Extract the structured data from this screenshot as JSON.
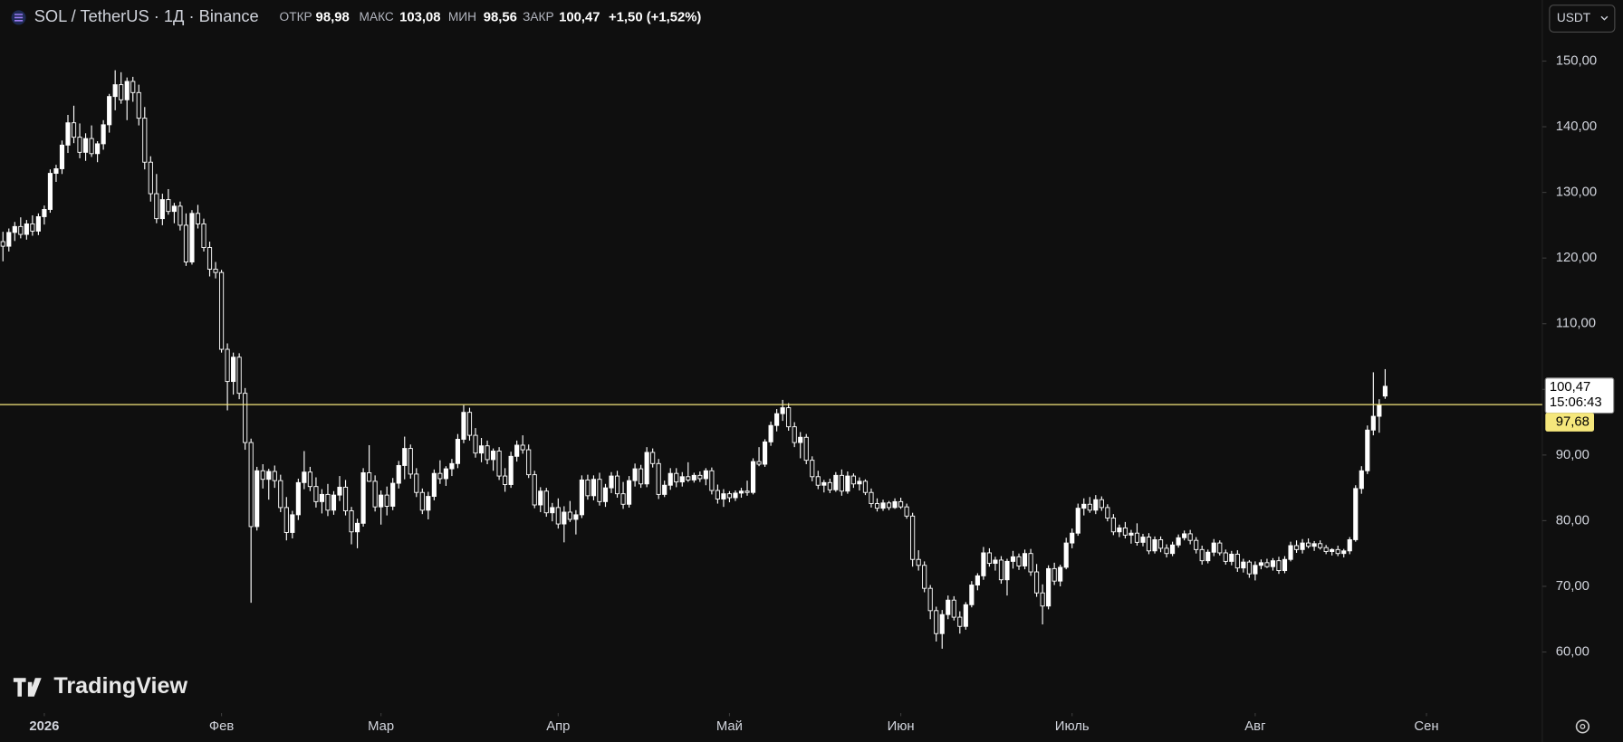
{
  "chart_data": {
    "type": "candlestick",
    "title": "SOL / TetherUS · 1Д · Binance",
    "ohlc_header": [
      {
        "label": "ОТКР",
        "value": "98,98"
      },
      {
        "label": "МАКС",
        "value": "103,08"
      },
      {
        "label": "МИН",
        "value": "98,56"
      },
      {
        "label": "ЗАКР",
        "value": "100,47"
      }
    ],
    "change": "+1,50 (+1,52%)",
    "currency": "USDT",
    "watermark": "TradingView",
    "up_color": "#ffffff",
    "down_color": "#0f0f0f",
    "wick_color": "#ffffff",
    "grid": false,
    "ylim": [
      50.7,
      159.3
    ],
    "yticks": [
      {
        "value": 60,
        "label": "60,00"
      },
      {
        "value": 70,
        "label": "70,00"
      },
      {
        "value": 80,
        "label": "80,00"
      },
      {
        "value": 90,
        "label": "90,00"
      },
      {
        "value": 100,
        "label": "100,00"
      },
      {
        "value": 110,
        "label": "110,00"
      },
      {
        "value": 120,
        "label": "120,00"
      },
      {
        "value": 130,
        "label": "130,00"
      },
      {
        "value": 140,
        "label": "140,00"
      },
      {
        "value": 150,
        "label": "150,00"
      }
    ],
    "xlim": [
      -0.5,
      260.6
    ],
    "xticks": [
      {
        "value": 7,
        "label": "2026"
      },
      {
        "value": 37,
        "label": "Фев"
      },
      {
        "value": 64,
        "label": "Мар"
      },
      {
        "value": 94,
        "label": "Апр"
      },
      {
        "value": 123,
        "label": "Май"
      },
      {
        "value": 152,
        "label": "Июн"
      },
      {
        "value": 181,
        "label": "Июль"
      },
      {
        "value": 212,
        "label": "Авг"
      },
      {
        "value": 241,
        "label": "Сен"
      }
    ],
    "price_line": {
      "value": 97.68,
      "label": "97,68",
      "color": "#f5e77c"
    },
    "last_price": {
      "value": 100.47,
      "label": "100,47"
    },
    "countdown": "15:06:43",
    "candles": [
      [
        122.5,
        124.0,
        119.5,
        121.8
      ],
      [
        121.8,
        124.5,
        121.0,
        123.9
      ],
      [
        123.9,
        125.5,
        122.6,
        124.8
      ],
      [
        124.8,
        126.2,
        123.0,
        123.6
      ],
      [
        123.6,
        125.8,
        122.8,
        125.2
      ],
      [
        125.2,
        126.5,
        123.4,
        124.1
      ],
      [
        124.1,
        126.8,
        123.5,
        126.3
      ],
      [
        126.3,
        128.0,
        125.1,
        127.4
      ],
      [
        127.4,
        133.5,
        126.9,
        132.9
      ],
      [
        132.9,
        134.2,
        131.6,
        133.6
      ],
      [
        133.6,
        137.9,
        132.8,
        137.2
      ],
      [
        137.2,
        141.8,
        136.0,
        140.6
      ],
      [
        140.6,
        143.2,
        137.5,
        138.4
      ],
      [
        138.4,
        140.5,
        135.2,
        136.1
      ],
      [
        136.1,
        139.0,
        134.8,
        138.2
      ],
      [
        138.2,
        140.2,
        135.4,
        135.9
      ],
      [
        135.9,
        137.8,
        134.6,
        137.4
      ],
      [
        137.4,
        141.0,
        136.5,
        140.3
      ],
      [
        140.3,
        145.0,
        139.1,
        144.6
      ],
      [
        144.6,
        148.6,
        142.5,
        146.4
      ],
      [
        146.4,
        148.3,
        143.5,
        144.1
      ],
      [
        144.1,
        147.5,
        141.0,
        146.9
      ],
      [
        146.9,
        147.6,
        143.8,
        145.2
      ],
      [
        145.2,
        146.4,
        140.2,
        141.3
      ],
      [
        141.3,
        143.0,
        133.5,
        134.6
      ],
      [
        134.6,
        135.5,
        128.6,
        129.8
      ],
      [
        129.8,
        132.8,
        125.3,
        126.0
      ],
      [
        126.0,
        129.8,
        125.0,
        128.9
      ],
      [
        128.9,
        130.5,
        126.6,
        127.1
      ],
      [
        127.1,
        128.4,
        125.3,
        127.9
      ],
      [
        127.9,
        128.6,
        124.2,
        125.0
      ],
      [
        125.0,
        126.8,
        118.8,
        119.4
      ],
      [
        119.4,
        127.3,
        119.0,
        126.8
      ],
      [
        126.8,
        128.1,
        124.5,
        125.2
      ],
      [
        125.2,
        126.0,
        121.0,
        121.6
      ],
      [
        121.6,
        122.5,
        117.2,
        118.3
      ],
      [
        118.3,
        119.4,
        116.9,
        117.8
      ],
      [
        117.8,
        118.2,
        105.6,
        106.1
      ],
      [
        106.1,
        107.0,
        96.8,
        101.2
      ],
      [
        101.2,
        105.6,
        99.2,
        104.9
      ],
      [
        104.9,
        105.5,
        98.5,
        99.4
      ],
      [
        99.4,
        100.2,
        90.8,
        91.9
      ],
      [
        91.9,
        92.5,
        67.5,
        79.1
      ],
      [
        79.1,
        88.2,
        78.5,
        87.6
      ],
      [
        87.6,
        88.6,
        84.9,
        86.3
      ],
      [
        86.3,
        87.9,
        83.2,
        87.5
      ],
      [
        87.5,
        88.4,
        85.0,
        86.1
      ],
      [
        86.1,
        87.0,
        81.3,
        82.0
      ],
      [
        82.0,
        83.6,
        77.0,
        78.2
      ],
      [
        78.2,
        81.5,
        77.3,
        80.9
      ],
      [
        80.9,
        86.4,
        80.1,
        85.8
      ],
      [
        85.8,
        90.6,
        84.8,
        87.4
      ],
      [
        87.4,
        88.2,
        84.5,
        85.2
      ],
      [
        85.2,
        86.6,
        82.0,
        82.9
      ],
      [
        82.9,
        84.8,
        81.1,
        84.0
      ],
      [
        84.0,
        85.6,
        80.7,
        81.6
      ],
      [
        81.6,
        84.5,
        80.9,
        83.9
      ],
      [
        83.9,
        86.8,
        83.0,
        85.1
      ],
      [
        85.1,
        86.2,
        80.8,
        81.5
      ],
      [
        81.5,
        82.1,
        76.4,
        78.3
      ],
      [
        78.3,
        80.3,
        75.8,
        79.6
      ],
      [
        79.6,
        88.0,
        79.1,
        87.3
      ],
      [
        87.3,
        91.5,
        85.9,
        86.0
      ],
      [
        86.0,
        86.9,
        81.4,
        82.1
      ],
      [
        82.1,
        84.6,
        79.4,
        83.9
      ],
      [
        83.9,
        85.2,
        80.8,
        82.2
      ],
      [
        82.2,
        86.5,
        81.6,
        85.7
      ],
      [
        85.7,
        89.1,
        84.9,
        88.4
      ],
      [
        88.4,
        92.8,
        86.3,
        91.0
      ],
      [
        91.0,
        91.6,
        86.4,
        87.1
      ],
      [
        87.1,
        88.0,
        83.6,
        84.3
      ],
      [
        84.3,
        84.9,
        81.0,
        81.6
      ],
      [
        81.6,
        84.4,
        80.2,
        83.7
      ],
      [
        83.7,
        87.8,
        83.1,
        87.2
      ],
      [
        87.2,
        89.2,
        85.6,
        86.4
      ],
      [
        86.4,
        88.3,
        85.3,
        87.9
      ],
      [
        87.9,
        89.4,
        86.8,
        88.7
      ],
      [
        88.7,
        93.2,
        88.0,
        92.4
      ],
      [
        92.4,
        97.6,
        91.8,
        96.5
      ],
      [
        96.5,
        97.2,
        92.2,
        93.0
      ],
      [
        93.0,
        94.1,
        89.6,
        90.3
      ],
      [
        90.3,
        92.6,
        88.9,
        91.4
      ],
      [
        91.4,
        92.2,
        88.6,
        89.3
      ],
      [
        89.3,
        91.0,
        87.6,
        90.6
      ],
      [
        90.6,
        91.2,
        86.2,
        86.8
      ],
      [
        86.8,
        88.0,
        84.4,
        85.5
      ],
      [
        85.5,
        90.5,
        85.0,
        89.8
      ],
      [
        89.8,
        92.2,
        89.0,
        91.5
      ],
      [
        91.5,
        93.0,
        90.2,
        90.8
      ],
      [
        90.8,
        91.6,
        86.5,
        87.0
      ],
      [
        87.0,
        87.6,
        81.9,
        82.4
      ],
      [
        82.4,
        85.1,
        81.3,
        84.5
      ],
      [
        84.5,
        85.0,
        80.6,
        81.2
      ],
      [
        81.2,
        82.7,
        79.9,
        82.0
      ],
      [
        82.0,
        83.4,
        78.8,
        79.5
      ],
      [
        79.5,
        82.2,
        76.7,
        81.3
      ],
      [
        81.3,
        83.0,
        79.8,
        80.2
      ],
      [
        80.2,
        81.6,
        77.9,
        80.9
      ],
      [
        80.9,
        86.9,
        80.4,
        86.2
      ],
      [
        86.2,
        87.0,
        83.2,
        83.8
      ],
      [
        83.8,
        86.9,
        83.1,
        86.3
      ],
      [
        86.3,
        87.3,
        82.3,
        82.9
      ],
      [
        82.9,
        85.6,
        82.1,
        85.0
      ],
      [
        85.0,
        87.4,
        84.2,
        86.8
      ],
      [
        86.8,
        87.6,
        83.5,
        84.1
      ],
      [
        84.1,
        85.9,
        81.8,
        82.5
      ],
      [
        82.5,
        86.8,
        82.0,
        86.1
      ],
      [
        86.1,
        88.7,
        85.2,
        87.9
      ],
      [
        87.9,
        88.5,
        85.0,
        85.6
      ],
      [
        85.6,
        91.2,
        85.1,
        90.4
      ],
      [
        90.4,
        91.0,
        88.1,
        88.7
      ],
      [
        88.7,
        89.4,
        83.3,
        84.0
      ],
      [
        84.0,
        86.1,
        83.6,
        85.4
      ],
      [
        85.4,
        88.0,
        84.7,
        87.2
      ],
      [
        87.2,
        88.0,
        85.1,
        85.9
      ],
      [
        85.9,
        87.4,
        85.2,
        86.7
      ],
      [
        86.7,
        88.9,
        85.9,
        86.2
      ],
      [
        86.2,
        87.3,
        85.8,
        86.9
      ],
      [
        86.9,
        87.5,
        85.9,
        86.4
      ],
      [
        86.4,
        88.0,
        85.4,
        87.6
      ],
      [
        87.6,
        88.1,
        84.0,
        84.6
      ],
      [
        84.6,
        85.5,
        82.6,
        83.3
      ],
      [
        83.3,
        84.8,
        82.1,
        84.1
      ],
      [
        84.1,
        84.5,
        82.8,
        83.5
      ],
      [
        83.5,
        84.6,
        83.0,
        84.2
      ],
      [
        84.2,
        85.0,
        83.5,
        84.5
      ],
      [
        84.5,
        86.1,
        83.8,
        84.3
      ],
      [
        84.3,
        89.5,
        84.0,
        89.0
      ],
      [
        89.0,
        91.2,
        88.3,
        88.6
      ],
      [
        88.6,
        92.4,
        88.2,
        92.0
      ],
      [
        92.0,
        95.1,
        91.4,
        94.5
      ],
      [
        94.5,
        97.0,
        93.6,
        96.3
      ],
      [
        96.3,
        98.4,
        95.2,
        97.2
      ],
      [
        97.2,
        97.9,
        93.7,
        94.3
      ],
      [
        94.3,
        95.0,
        91.2,
        91.9
      ],
      [
        91.9,
        93.5,
        89.5,
        92.7
      ],
      [
        92.7,
        93.2,
        88.6,
        89.2
      ],
      [
        89.2,
        89.8,
        86.0,
        86.7
      ],
      [
        86.7,
        87.6,
        84.8,
        85.4
      ],
      [
        85.4,
        86.2,
        84.3,
        85.8
      ],
      [
        85.8,
        86.4,
        84.2,
        84.7
      ],
      [
        84.7,
        87.4,
        84.4,
        86.9
      ],
      [
        86.9,
        87.8,
        83.8,
        84.5
      ],
      [
        84.5,
        87.5,
        84.1,
        86.8
      ],
      [
        86.8,
        87.2,
        85.0,
        85.6
      ],
      [
        85.6,
        86.6,
        84.6,
        86.0
      ],
      [
        86.0,
        86.3,
        83.9,
        84.3
      ],
      [
        84.3,
        84.9,
        82.0,
        82.6
      ],
      [
        82.6,
        83.4,
        81.4,
        81.9
      ],
      [
        81.9,
        83.2,
        81.5,
        82.7
      ],
      [
        82.7,
        83.0,
        81.6,
        82.0
      ],
      [
        82.0,
        83.4,
        81.8,
        82.9
      ],
      [
        82.9,
        83.5,
        81.8,
        82.1
      ],
      [
        82.1,
        82.6,
        80.3,
        80.7
      ],
      [
        80.7,
        81.2,
        73.0,
        74.1
      ],
      [
        74.1,
        75.5,
        72.4,
        73.2
      ],
      [
        73.2,
        73.8,
        69.1,
        69.7
      ],
      [
        69.7,
        70.2,
        65.0,
        66.3
      ],
      [
        66.3,
        66.9,
        61.6,
        62.8
      ],
      [
        62.8,
        66.4,
        60.5,
        65.7
      ],
      [
        65.7,
        68.6,
        65.0,
        67.9
      ],
      [
        67.9,
        68.5,
        64.8,
        65.3
      ],
      [
        65.3,
        66.2,
        62.8,
        63.9
      ],
      [
        63.9,
        67.6,
        63.4,
        67.2
      ],
      [
        67.2,
        70.8,
        66.8,
        70.2
      ],
      [
        70.2,
        72.0,
        69.4,
        71.6
      ],
      [
        71.6,
        76.0,
        71.0,
        75.1
      ],
      [
        75.1,
        75.8,
        73.0,
        73.5
      ],
      [
        73.5,
        74.5,
        72.4,
        74.0
      ],
      [
        74.0,
        74.6,
        70.4,
        71.0
      ],
      [
        71.0,
        74.2,
        68.6,
        73.8
      ],
      [
        73.8,
        75.4,
        72.7,
        74.5
      ],
      [
        74.5,
        75.0,
        72.5,
        73.1
      ],
      [
        73.1,
        75.6,
        72.6,
        75.0
      ],
      [
        75.0,
        75.7,
        71.6,
        72.2
      ],
      [
        72.2,
        73.4,
        68.4,
        69.0
      ],
      [
        69.0,
        70.3,
        64.2,
        67.0
      ],
      [
        67.0,
        73.2,
        66.5,
        72.7
      ],
      [
        72.7,
        73.6,
        70.2,
        70.8
      ],
      [
        70.8,
        73.3,
        70.0,
        72.9
      ],
      [
        72.9,
        77.4,
        72.6,
        76.6
      ],
      [
        76.6,
        78.8,
        75.8,
        78.1
      ],
      [
        78.1,
        82.6,
        77.7,
        81.9
      ],
      [
        81.9,
        83.4,
        80.8,
        82.5
      ],
      [
        82.5,
        83.6,
        81.2,
        81.6
      ],
      [
        81.6,
        83.9,
        81.0,
        83.2
      ],
      [
        83.2,
        83.7,
        81.5,
        82.0
      ],
      [
        82.0,
        82.5,
        79.9,
        80.4
      ],
      [
        80.4,
        81.0,
        77.8,
        78.3
      ],
      [
        78.3,
        79.4,
        77.5,
        78.9
      ],
      [
        78.9,
        79.8,
        77.3,
        77.8
      ],
      [
        77.8,
        78.6,
        76.5,
        78.1
      ],
      [
        78.1,
        79.6,
        76.2,
        76.7
      ],
      [
        76.7,
        78.0,
        76.1,
        77.5
      ],
      [
        77.5,
        78.1,
        74.9,
        75.4
      ],
      [
        75.4,
        77.6,
        75.0,
        77.1
      ],
      [
        77.1,
        77.6,
        75.2,
        75.8
      ],
      [
        75.8,
        76.4,
        74.4,
        75.0
      ],
      [
        75.0,
        76.8,
        74.6,
        76.3
      ],
      [
        76.3,
        77.9,
        75.9,
        77.4
      ],
      [
        77.4,
        78.5,
        77.0,
        78.0
      ],
      [
        78.0,
        78.6,
        76.4,
        77.0
      ],
      [
        77.0,
        77.5,
        75.0,
        75.6
      ],
      [
        75.6,
        76.2,
        73.3,
        73.9
      ],
      [
        73.9,
        75.6,
        73.5,
        75.2
      ],
      [
        75.2,
        77.2,
        74.6,
        76.6
      ],
      [
        76.6,
        77.0,
        74.7,
        75.1
      ],
      [
        75.1,
        75.6,
        73.3,
        73.8
      ],
      [
        73.8,
        75.4,
        73.2,
        74.9
      ],
      [
        74.9,
        75.5,
        72.2,
        72.8
      ],
      [
        72.8,
        74.2,
        72.1,
        73.7
      ],
      [
        73.7,
        74.0,
        71.3,
        71.9
      ],
      [
        71.9,
        73.8,
        70.9,
        73.2
      ],
      [
        73.2,
        74.1,
        72.6,
        73.6
      ],
      [
        73.6,
        74.2,
        72.8,
        73.0
      ],
      [
        73.0,
        74.3,
        72.4,
        73.9
      ],
      [
        73.9,
        74.5,
        71.9,
        72.4
      ],
      [
        72.4,
        74.6,
        72.0,
        74.1
      ],
      [
        74.1,
        76.8,
        73.8,
        76.2
      ],
      [
        76.2,
        77.0,
        75.1,
        75.6
      ],
      [
        75.6,
        77.2,
        75.0,
        76.6
      ],
      [
        76.6,
        77.3,
        75.8,
        76.1
      ],
      [
        76.1,
        76.9,
        75.4,
        76.5
      ],
      [
        76.5,
        77.0,
        75.6,
        75.9
      ],
      [
        75.9,
        76.3,
        74.9,
        75.3
      ],
      [
        75.3,
        75.8,
        74.7,
        75.6
      ],
      [
        75.6,
        76.2,
        74.6,
        75.0
      ],
      [
        75.0,
        75.7,
        74.4,
        75.4
      ],
      [
        75.4,
        77.5,
        74.9,
        77.1
      ],
      [
        77.1,
        85.4,
        76.8,
        84.9
      ],
      [
        84.9,
        88.3,
        84.1,
        87.6
      ],
      [
        87.6,
        94.5,
        87.1,
        93.8
      ],
      [
        93.8,
        102.6,
        93.0,
        95.9
      ],
      [
        95.9,
        98.5,
        93.4,
        97.7
      ],
      [
        98.98,
        103.08,
        98.56,
        100.47
      ]
    ]
  }
}
